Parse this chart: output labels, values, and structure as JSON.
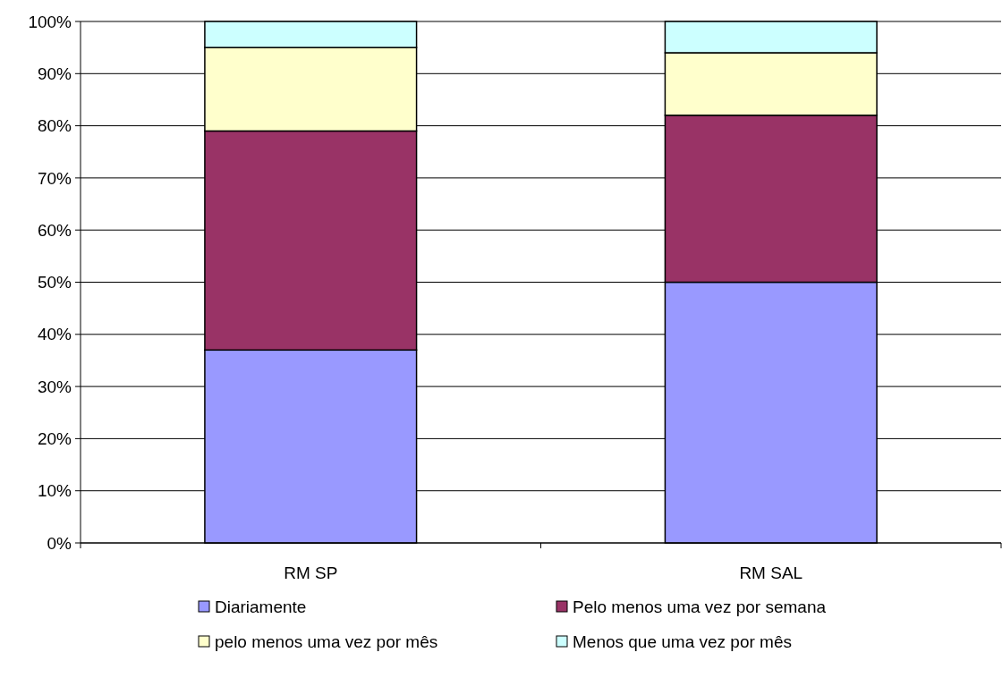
{
  "chart_data": {
    "type": "bar",
    "stacked": true,
    "categories": [
      "RM SP",
      "RM SAL"
    ],
    "series": [
      {
        "name": "Diariamente",
        "color": "#9999ff",
        "values": [
          37,
          50
        ]
      },
      {
        "name": "Pelo menos uma vez por semana",
        "color": "#993366",
        "values": [
          42,
          32
        ]
      },
      {
        "name": "pelo menos uma vez por mês",
        "color": "#ffffcc",
        "values": [
          16,
          12
        ]
      },
      {
        "name": "Menos que uma vez por mês",
        "color": "#ccffff",
        "values": [
          5,
          6
        ]
      }
    ],
    "ylim": [
      0,
      100
    ],
    "yticks": [
      {
        "value": 0,
        "label": "0%"
      },
      {
        "value": 10,
        "label": "10%"
      },
      {
        "value": 20,
        "label": "20%"
      },
      {
        "value": 30,
        "label": "30%"
      },
      {
        "value": 40,
        "label": "40%"
      },
      {
        "value": 50,
        "label": "50%"
      },
      {
        "value": 60,
        "label": "60%"
      },
      {
        "value": 70,
        "label": "70%"
      },
      {
        "value": 80,
        "label": "80%"
      },
      {
        "value": 90,
        "label": "90%"
      },
      {
        "value": 100,
        "label": "100%"
      }
    ],
    "grid": "y",
    "legend": "bottom"
  }
}
